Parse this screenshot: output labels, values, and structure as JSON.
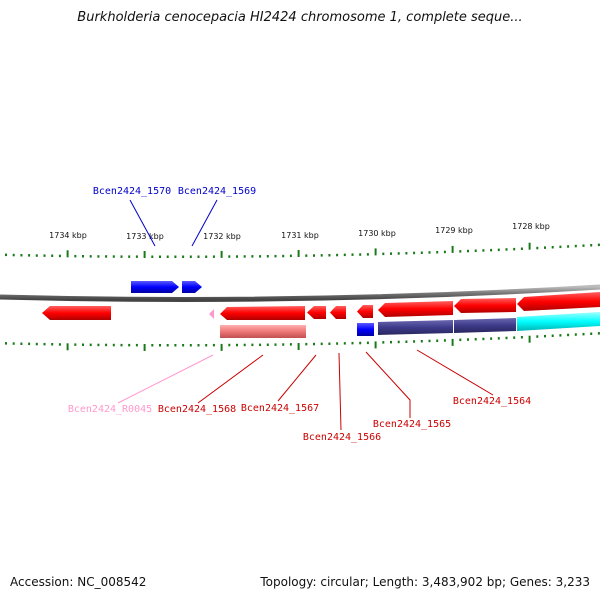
{
  "title": "Burkholderia cenocepacia HI2424 chromosome 1, complete seque...",
  "footer": {
    "accession": "Accession: NC_008542",
    "summary": "Topology: circular; Length: 3,483,902 bp; Genes: 3,233"
  },
  "axis_labels": [
    "1734 kbp",
    "1733 kbp",
    "1732 kbp",
    "1731 kbp",
    "1730 kbp",
    "1729 kbp",
    "1728 kbp"
  ],
  "gene_labels": {
    "g1570": "Bcen2424_1570",
    "g1569": "Bcen2424_1569",
    "r0045": "Bcen2424_R0045",
    "g1568": "Bcen2424_1568",
    "g1567": "Bcen2424_1567",
    "g1566": "Bcen2424_1566",
    "g1565": "Bcen2424_1565",
    "g1564": "Bcen2424_1564"
  },
  "colors": {
    "forward_gene": "#0000ff",
    "reverse_gene": "#ff0000",
    "rna_gene": "#ff99cc",
    "rna_product": "#ee7777",
    "protein_blue": "#0000ee",
    "protein_navy": "#3d3a8a",
    "protein_cyan": "#00ffff",
    "tick": "#1a7a1a",
    "backbone": "#888888"
  }
}
